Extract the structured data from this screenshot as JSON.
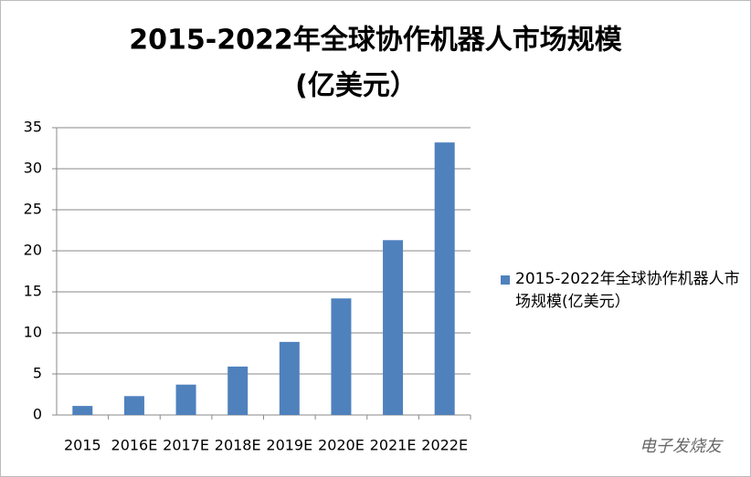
{
  "chart_data": {
    "type": "bar",
    "title": [
      "2015-2022年全球协作机器人市场规模",
      "(亿美元）"
    ],
    "categories": [
      "2015",
      "2016E",
      "2017E",
      "2018E",
      "2019E",
      "2020E",
      "2021E",
      "2022E"
    ],
    "series": [
      {
        "name": "2015-2022年全球协作机器人市场规模(亿美元）",
        "color": "#4f81bd",
        "values": [
          1.1,
          2.3,
          3.7,
          5.9,
          8.9,
          14.2,
          21.3,
          33.2
        ]
      }
    ],
    "ylim": [
      0,
      35
    ],
    "yticks": [
      0,
      5,
      10,
      15,
      20,
      25,
      30,
      35
    ],
    "grid": true,
    "legend": "right",
    "watermark": "电子发烧友"
  }
}
